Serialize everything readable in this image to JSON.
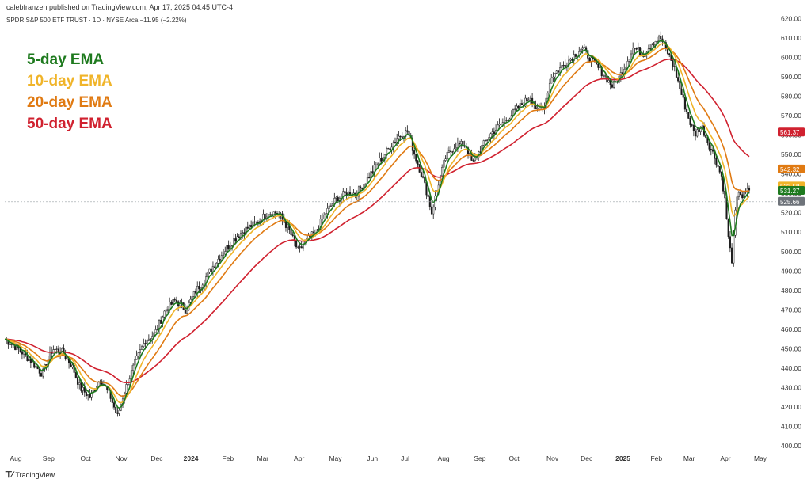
{
  "header": {
    "publisher": "calebfranzen published on TradingView.com, Apr 17, 2025 04:45 UTC-4",
    "symbol_line": "SPDR S&P 500 ETF TRUST · 1D · NYSE Arca  −11.95 (−2.22%)"
  },
  "legend": [
    {
      "label": "5-day EMA",
      "color": "#1e7a1e"
    },
    {
      "label": "10-day EMA",
      "color": "#f0b429"
    },
    {
      "label": "20-day EMA",
      "color": "#e07a12"
    },
    {
      "label": "50-day EMA",
      "color": "#d0212f"
    }
  ],
  "footer": {
    "brand": "TradingView",
    "logo_icon": "tradingview-logo-icon"
  },
  "chart_data": {
    "type": "line",
    "title": "",
    "ylim": [
      398,
      623
    ],
    "y_ticks": [
      400,
      410,
      420,
      430,
      440,
      450,
      460,
      470,
      480,
      490,
      500,
      510,
      520,
      530,
      540,
      550,
      560,
      570,
      580,
      590,
      600,
      610,
      620
    ],
    "x_ticks": [
      {
        "label": "Aug",
        "bold": false,
        "t": 0.02
      },
      {
        "label": "Sep",
        "bold": false,
        "t": 0.066
      },
      {
        "label": "Oct",
        "bold": false,
        "t": 0.118
      },
      {
        "label": "Nov",
        "bold": false,
        "t": 0.168
      },
      {
        "label": "Dec",
        "bold": false,
        "t": 0.218
      },
      {
        "label": "2024",
        "bold": true,
        "t": 0.266
      },
      {
        "label": "Feb",
        "bold": false,
        "t": 0.318
      },
      {
        "label": "Mar",
        "bold": false,
        "t": 0.367
      },
      {
        "label": "Apr",
        "bold": false,
        "t": 0.418
      },
      {
        "label": "May",
        "bold": false,
        "t": 0.469
      },
      {
        "label": "Jun",
        "bold": false,
        "t": 0.521
      },
      {
        "label": "Jul",
        "bold": false,
        "t": 0.567
      },
      {
        "label": "Aug",
        "bold": false,
        "t": 0.621
      },
      {
        "label": "Sep",
        "bold": false,
        "t": 0.672
      },
      {
        "label": "Oct",
        "bold": false,
        "t": 0.72
      },
      {
        "label": "Nov",
        "bold": false,
        "t": 0.774
      },
      {
        "label": "Dec",
        "bold": false,
        "t": 0.822
      },
      {
        "label": "2025",
        "bold": true,
        "t": 0.873
      },
      {
        "label": "Feb",
        "bold": false,
        "t": 0.92
      },
      {
        "label": "Mar",
        "bold": false,
        "t": 0.966
      },
      {
        "label": "Apr",
        "bold": false,
        "t": 1.017
      },
      {
        "label": "May",
        "bold": false,
        "t": 1.066
      }
    ],
    "price_anchors": [
      [
        0.0,
        455
      ],
      [
        0.02,
        450
      ],
      [
        0.04,
        443
      ],
      [
        0.055,
        437
      ],
      [
        0.07,
        450
      ],
      [
        0.085,
        448
      ],
      [
        0.1,
        440
      ],
      [
        0.11,
        430
      ],
      [
        0.125,
        425
      ],
      [
        0.14,
        435
      ],
      [
        0.155,
        425
      ],
      [
        0.165,
        415
      ],
      [
        0.175,
        428
      ],
      [
        0.19,
        442
      ],
      [
        0.205,
        454
      ],
      [
        0.22,
        458
      ],
      [
        0.235,
        470
      ],
      [
        0.25,
        475
      ],
      [
        0.265,
        470
      ],
      [
        0.28,
        480
      ],
      [
        0.295,
        487
      ],
      [
        0.31,
        495
      ],
      [
        0.325,
        502
      ],
      [
        0.34,
        508
      ],
      [
        0.355,
        512
      ],
      [
        0.37,
        515
      ],
      [
        0.385,
        520
      ],
      [
        0.4,
        520
      ],
      [
        0.415,
        512
      ],
      [
        0.43,
        500
      ],
      [
        0.44,
        505
      ],
      [
        0.455,
        510
      ],
      [
        0.47,
        520
      ],
      [
        0.485,
        527
      ],
      [
        0.5,
        530
      ],
      [
        0.515,
        530
      ],
      [
        0.53,
        537
      ],
      [
        0.545,
        545
      ],
      [
        0.56,
        552
      ],
      [
        0.575,
        559
      ],
      [
        0.59,
        562
      ],
      [
        0.6,
        550
      ],
      [
        0.61,
        540
      ],
      [
        0.62,
        528
      ],
      [
        0.625,
        520
      ],
      [
        0.635,
        535
      ],
      [
        0.645,
        548
      ],
      [
        0.66,
        555
      ],
      [
        0.675,
        555
      ],
      [
        0.685,
        545
      ],
      [
        0.695,
        552
      ],
      [
        0.71,
        560
      ],
      [
        0.725,
        565
      ],
      [
        0.74,
        570
      ],
      [
        0.755,
        575
      ],
      [
        0.77,
        580
      ],
      [
        0.78,
        572
      ],
      [
        0.79,
        575
      ],
      [
        0.8,
        590
      ],
      [
        0.815,
        595
      ],
      [
        0.83,
        600
      ],
      [
        0.845,
        605
      ],
      [
        0.86,
        598
      ],
      [
        0.875,
        592
      ],
      [
        0.89,
        585
      ],
      [
        0.9,
        590
      ],
      [
        0.91,
        597
      ],
      [
        0.92,
        605
      ],
      [
        0.935,
        602
      ],
      [
        0.95,
        608
      ],
      [
        0.96,
        610
      ],
      [
        0.97,
        603
      ],
      [
        0.98,
        595
      ],
      [
        0.99,
        582
      ],
      [
        1.0,
        570
      ],
      [
        1.01,
        560
      ],
      [
        1.02,
        565
      ],
      [
        1.03,
        556
      ],
      [
        1.04,
        548
      ],
      [
        1.05,
        538
      ],
      [
        1.055,
        525
      ],
      [
        1.06,
        505
      ],
      [
        1.065,
        495
      ],
      [
        1.07,
        522
      ],
      [
        1.075,
        532
      ],
      [
        1.08,
        528
      ],
      [
        1.09,
        532
      ]
    ],
    "ema_values_last": [
      {
        "label": "561.37",
        "color": "#d0212f",
        "value": 561.37
      },
      {
        "label": "542.32",
        "color": "#e07a12",
        "value": 542.32
      },
      {
        "label": "533.58",
        "color": "#f0b429",
        "value": 533.58
      },
      {
        "label": "531.27",
        "color": "#1e7a1e",
        "value": 531.27
      },
      {
        "label": "525.66",
        "color": "#6e737a",
        "value": 525.66
      }
    ],
    "last_price": 525.66
  }
}
